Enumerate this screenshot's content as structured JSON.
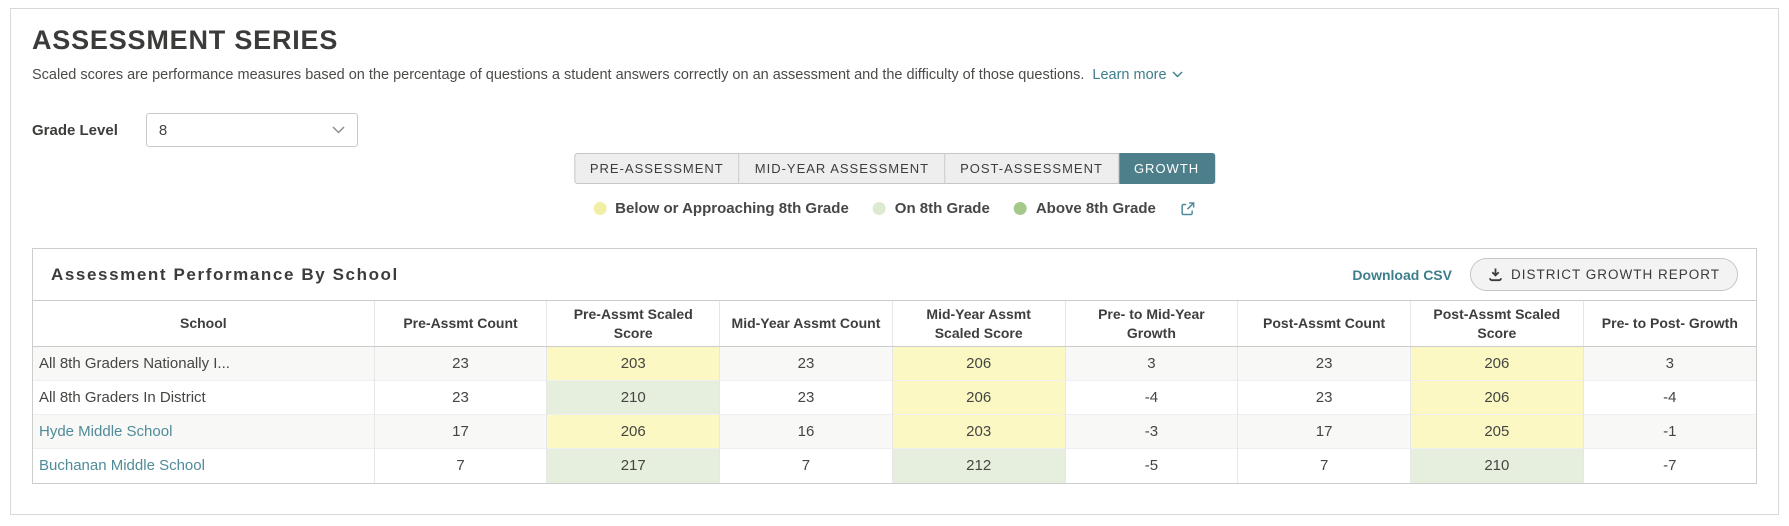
{
  "header": {
    "title": "ASSESSMENT SERIES",
    "subtitle": "Scaled scores are performance measures based on the percentage of questions a student answers correctly on an assessment and the difficulty of those questions.",
    "learn_more": "Learn more"
  },
  "filter": {
    "label": "Grade Level",
    "value": "8"
  },
  "tabs": [
    {
      "label": "PRE-ASSESSMENT",
      "active": false
    },
    {
      "label": "MID-YEAR ASSESSMENT",
      "active": false
    },
    {
      "label": "POST-ASSESSMENT",
      "active": false
    },
    {
      "label": "GROWTH",
      "active": true
    }
  ],
  "legend": [
    {
      "label": "Below or Approaching 8th Grade",
      "color": "#f1efa3",
      "icon": "below-grade-dot-icon"
    },
    {
      "label": "On 8th Grade",
      "color": "#dcead0",
      "icon": "on-grade-dot-icon"
    },
    {
      "label": "Above 8th Grade",
      "color": "#a5c98b",
      "icon": "above-grade-dot-icon"
    }
  ],
  "panel": {
    "title": "Assessment Performance By School",
    "download_csv": "Download CSV",
    "report_button": "DISTRICT GROWTH REPORT"
  },
  "table": {
    "columns": [
      "School",
      "Pre-Assmt Count",
      "Pre-Assmt Scaled Score",
      "Mid-Year Assmt Count",
      "Mid-Year Assmt Scaled Score",
      "Pre- to Mid-Year Growth",
      "Post-Assmt Count",
      "Post-Assmt Scaled Score",
      "Pre- to Post- Growth"
    ],
    "rows": [
      {
        "school": {
          "label": "All 8th Graders Nationally I...",
          "link": false
        },
        "cells": [
          {
            "v": "23"
          },
          {
            "v": "203",
            "hl": "yellow"
          },
          {
            "v": "23"
          },
          {
            "v": "206",
            "hl": "yellow"
          },
          {
            "v": "3"
          },
          {
            "v": "23"
          },
          {
            "v": "206",
            "hl": "yellow"
          },
          {
            "v": "3"
          }
        ]
      },
      {
        "school": {
          "label": "All 8th Graders In District",
          "link": false
        },
        "cells": [
          {
            "v": "23"
          },
          {
            "v": "210",
            "hl": "green"
          },
          {
            "v": "23"
          },
          {
            "v": "206",
            "hl": "yellow"
          },
          {
            "v": "-4"
          },
          {
            "v": "23"
          },
          {
            "v": "206",
            "hl": "yellow"
          },
          {
            "v": "-4"
          }
        ]
      },
      {
        "school": {
          "label": "Hyde Middle School",
          "link": true
        },
        "cells": [
          {
            "v": "17"
          },
          {
            "v": "206",
            "hl": "yellow"
          },
          {
            "v": "16"
          },
          {
            "v": "203",
            "hl": "yellow"
          },
          {
            "v": "-3"
          },
          {
            "v": "17"
          },
          {
            "v": "205",
            "hl": "yellow"
          },
          {
            "v": "-1"
          }
        ]
      },
      {
        "school": {
          "label": "Buchanan Middle School",
          "link": true
        },
        "cells": [
          {
            "v": "7"
          },
          {
            "v": "217",
            "hl": "green"
          },
          {
            "v": "7"
          },
          {
            "v": "212",
            "hl": "green"
          },
          {
            "v": "-5"
          },
          {
            "v": "7"
          },
          {
            "v": "210",
            "hl": "green"
          },
          {
            "v": "-7"
          }
        ]
      }
    ]
  },
  "colors": {
    "accent_teal": "#4d7f8b",
    "link_teal": "#3e7e8b",
    "school_link_teal": "#4f8b99",
    "highlight_yellow": "#fbf8c4",
    "highlight_green": "#e6efdd",
    "legend_yellow": "#f1efa3",
    "legend_light_green": "#dcead0",
    "legend_green": "#a5c98b"
  }
}
